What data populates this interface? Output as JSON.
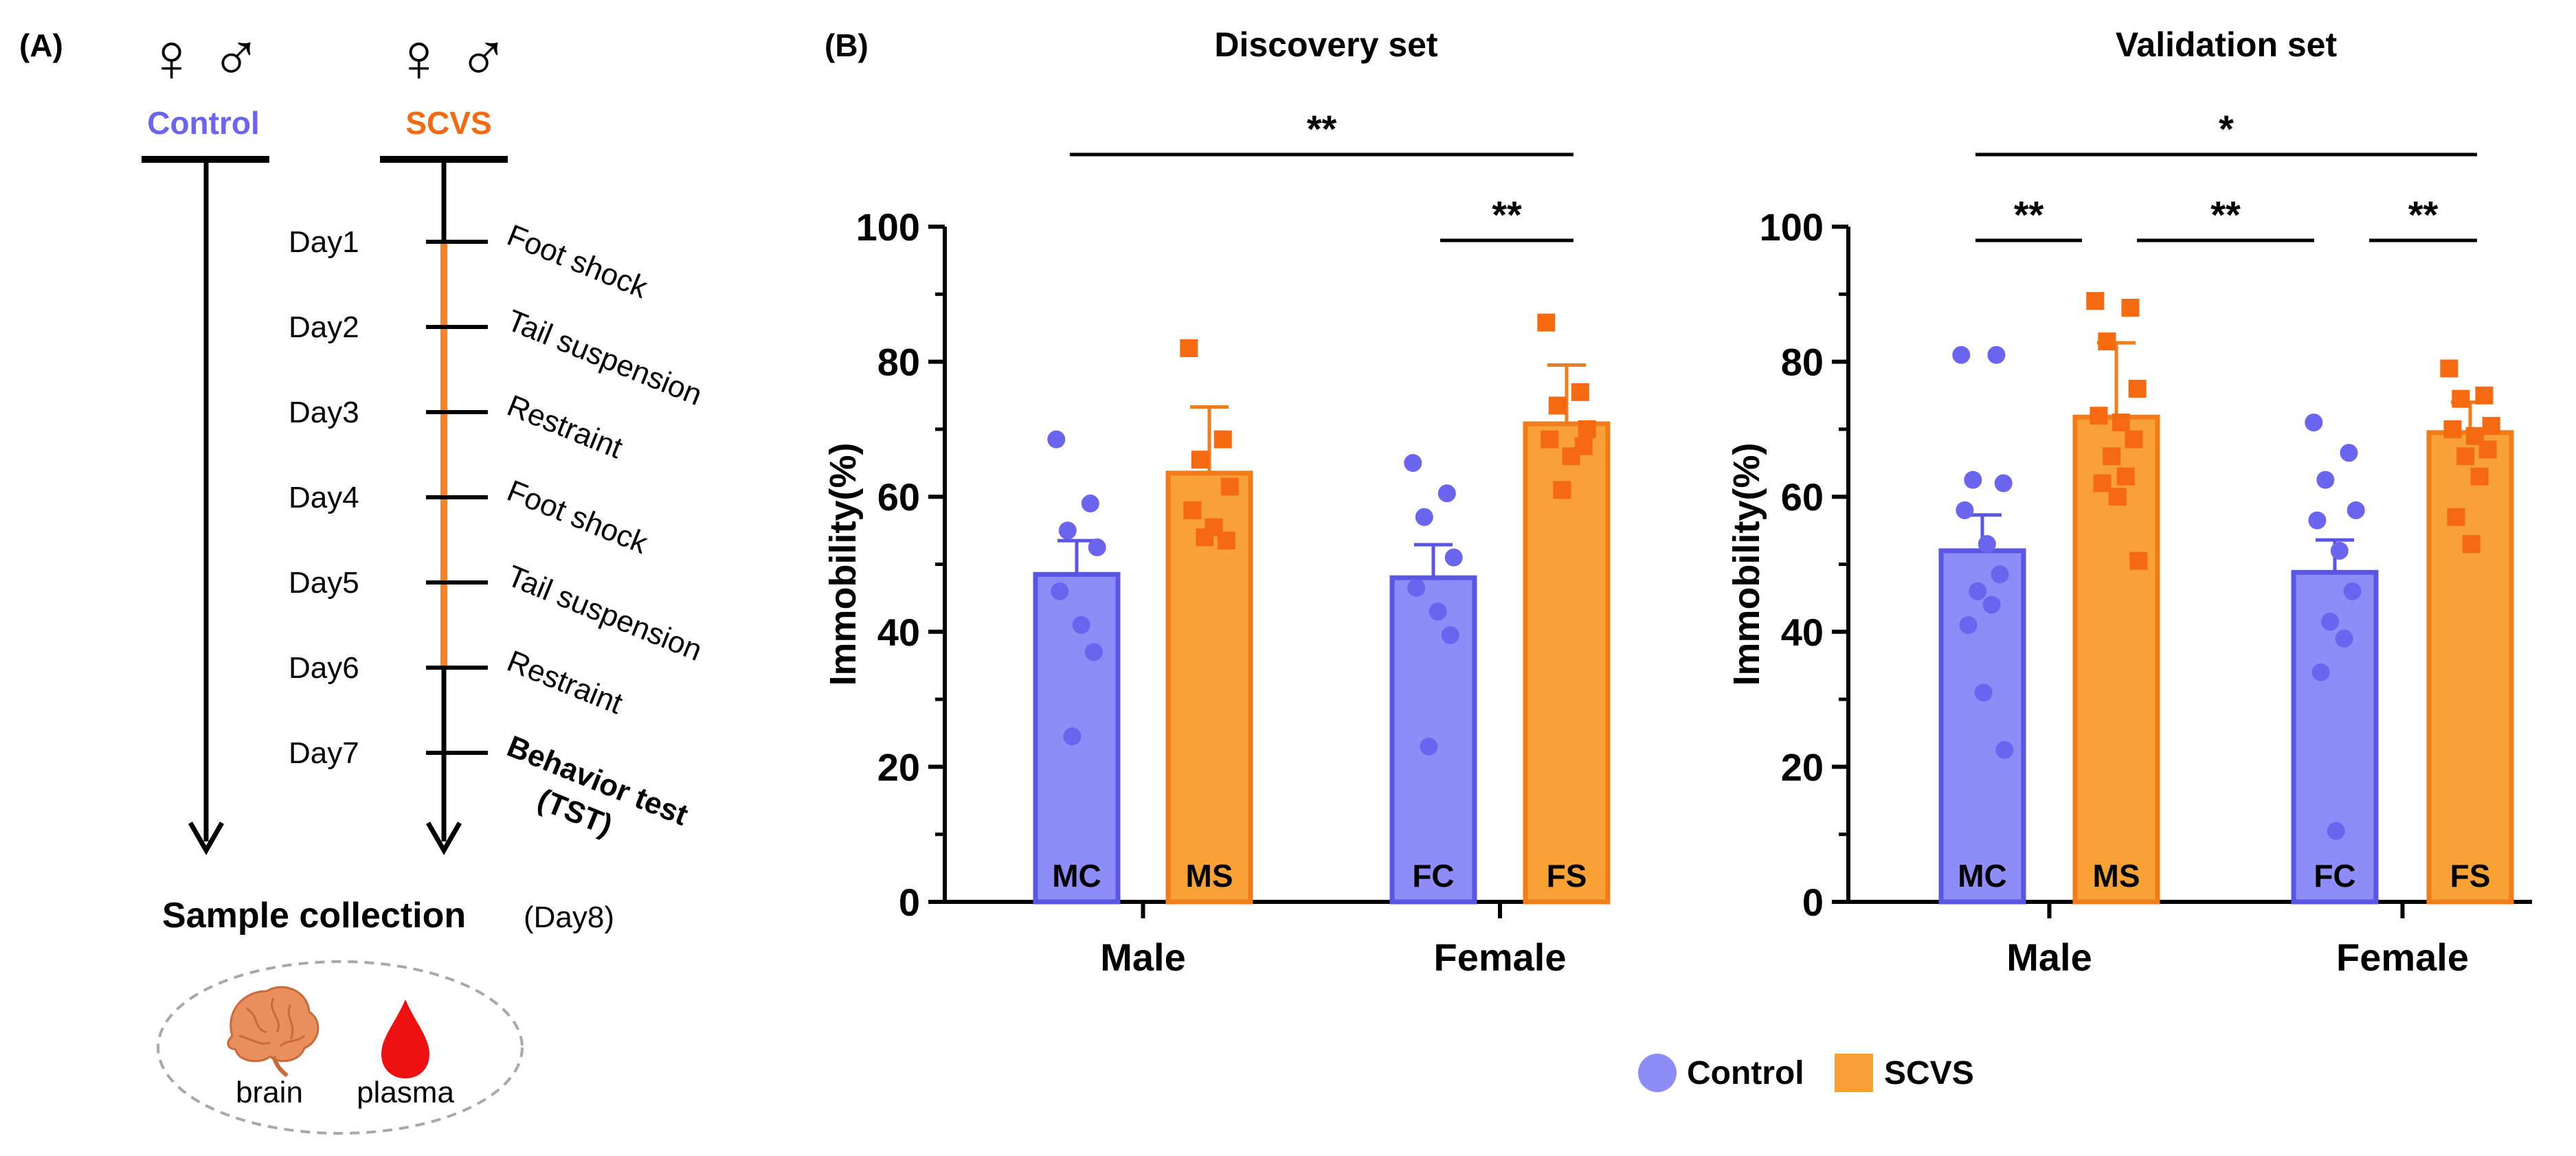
{
  "colors": {
    "control": "#8e8cf7",
    "control_edge": "#5a55e3",
    "control_dot": "#6a64ee",
    "scvs": "#f8a235",
    "scvs_edge": "#f07c1a",
    "scvs_dot": "#f56a10",
    "axis": "#000000",
    "brain": "#e98f5c",
    "blood": "#ee1111",
    "ellipse": "#a8a8a8"
  },
  "panel_a": {
    "label": "(A)",
    "female_symbol": "♀",
    "male_symbol": "♂",
    "control_label": "Control",
    "scvs_label": "SCVS",
    "days": [
      {
        "day": "Day1",
        "event": "Foot shock"
      },
      {
        "day": "Day2",
        "event": "Tail suspension"
      },
      {
        "day": "Day3",
        "event": "Restraint"
      },
      {
        "day": "Day4",
        "event": "Foot shock"
      },
      {
        "day": "Day5",
        "event": "Tail suspension"
      },
      {
        "day": "Day6",
        "event": "Restraint"
      },
      {
        "day": "Day7",
        "event": "Behavior test",
        "event2": "(TST)"
      }
    ],
    "sample_collection": "Sample collection",
    "sample_day": "(Day8)",
    "brain_label": "brain",
    "plasma_label": "plasma",
    "brain_icon": "brain-icon",
    "plasma_icon": "blood-drop-icon"
  },
  "panel_b": {
    "label": "(B)",
    "legend": [
      {
        "name": "Control",
        "marker": "circle"
      },
      {
        "name": "SCVS",
        "marker": "square"
      }
    ]
  },
  "chart_data": [
    {
      "type": "bar",
      "title": "Discovery set",
      "ylabel": "Immobility(%)",
      "xlabel": "",
      "ylim": [
        0,
        100
      ],
      "yticks": [
        0,
        20,
        40,
        60,
        80,
        100
      ],
      "groups": [
        "Male",
        "Female"
      ],
      "bars": [
        {
          "label": "MC",
          "group": "Male",
          "series": "Control",
          "mean": 48.5,
          "sem": 5,
          "points": [
            68.5,
            59,
            55,
            52.5,
            46,
            41,
            37,
            24.5
          ]
        },
        {
          "label": "MS",
          "group": "Male",
          "series": "SCVS",
          "mean": 63.5,
          "sem": 9.8,
          "points": [
            82,
            68.5,
            65.5,
            61.5,
            58,
            55.5,
            53.5,
            54
          ]
        },
        {
          "label": "FC",
          "group": "Female",
          "series": "Control",
          "mean": 48,
          "sem": 4.9,
          "points": [
            65,
            60.5,
            57,
            51,
            46.5,
            43,
            39.5,
            23
          ]
        },
        {
          "label": "FS",
          "group": "Female",
          "series": "SCVS",
          "mean": 70.8,
          "sem": 8.7,
          "points": [
            85.8,
            75.5,
            73.5,
            70,
            68.5,
            66,
            67.5,
            61
          ]
        }
      ],
      "significance": [
        {
          "from": "MC",
          "to": "FS",
          "label": "**"
        },
        {
          "from": "FC",
          "to": "FS",
          "label": "**"
        }
      ]
    },
    {
      "type": "bar",
      "title": "Validation set",
      "ylabel": "Immobility(%)",
      "xlabel": "",
      "ylim": [
        0,
        100
      ],
      "yticks": [
        0,
        20,
        40,
        60,
        80,
        100
      ],
      "groups": [
        "Male",
        "Female"
      ],
      "bars": [
        {
          "label": "MC",
          "group": "Male",
          "series": "Control",
          "mean": 52,
          "sem": 5.3,
          "points": [
            81,
            81,
            62.5,
            62,
            58,
            53,
            48.5,
            46,
            44,
            41,
            31,
            22.5
          ]
        },
        {
          "label": "MS",
          "group": "Male",
          "series": "SCVS",
          "mean": 71.8,
          "sem": 11,
          "points": [
            89,
            88,
            83,
            76,
            72,
            71,
            68.5,
            66,
            63,
            62,
            60,
            50.5
          ]
        },
        {
          "label": "FC",
          "group": "Female",
          "series": "Control",
          "mean": 48.8,
          "sem": 4.8,
          "points": [
            71,
            66.5,
            62.5,
            58,
            56.5,
            52,
            46,
            41.5,
            39,
            34,
            10.5
          ]
        },
        {
          "label": "FS",
          "group": "Female",
          "series": "SCVS",
          "mean": 69.5,
          "sem": 4.5,
          "points": [
            79,
            75,
            74.5,
            70.5,
            70,
            69,
            67,
            66,
            63,
            57,
            53
          ]
        }
      ],
      "significance": [
        {
          "from": "MC",
          "to": "FS",
          "label": "*"
        },
        {
          "from": "MC",
          "to": "MS",
          "label": "**"
        },
        {
          "from": "MS",
          "to": "FC",
          "label": "**"
        },
        {
          "from": "FC",
          "to": "FS",
          "label": "**"
        }
      ]
    }
  ]
}
